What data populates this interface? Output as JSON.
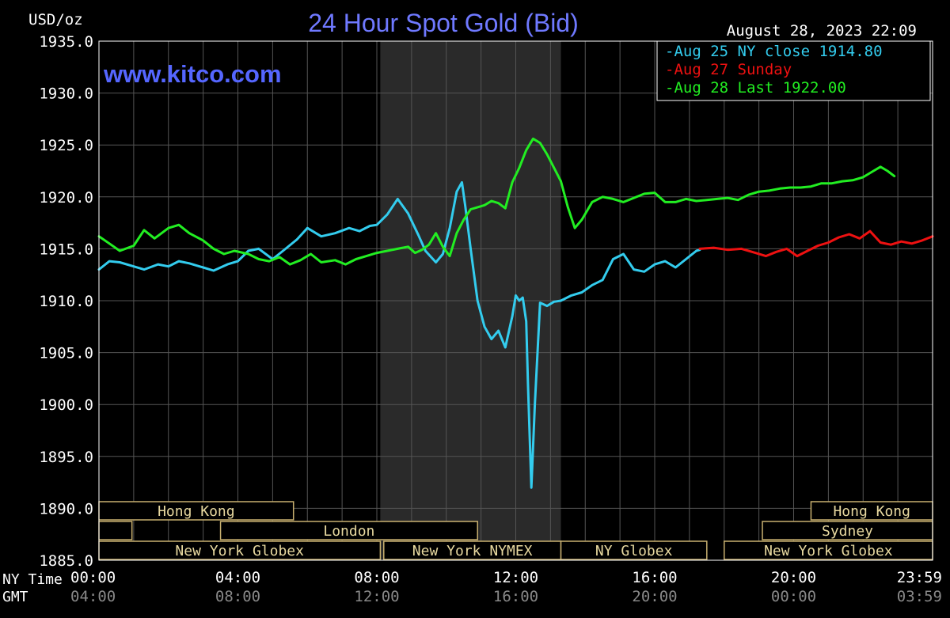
{
  "chart_data": {
    "type": "line",
    "title": "24 Hour Spot Gold (Bid)",
    "ylabel": "USD/oz",
    "watermark": "www.kitco.com",
    "timestamp": "August 28, 2023 22:09",
    "ylim": [
      1885,
      1935
    ],
    "y_ticks": [
      1935,
      1930,
      1925,
      1920,
      1915,
      1910,
      1905,
      1900,
      1895,
      1890,
      1885
    ],
    "y_tick_labels": [
      "1935.0",
      "1930.0",
      "1925.0",
      "1920.0",
      "1915.0",
      "1910.0",
      "1905.0",
      "1900.0",
      "1895.0",
      "1890.0",
      "1885.0"
    ],
    "xlim": [
      0,
      24
    ],
    "x_ticks": [
      0,
      4,
      8,
      12,
      16,
      20,
      24
    ],
    "x_row1_label": "NY Time",
    "x_row1_ticks": [
      "00:00",
      "04:00",
      "08:00",
      "12:00",
      "16:00",
      "20:00",
      "23:59"
    ],
    "x_row2_label": "GMT",
    "x_row2_ticks": [
      "04:00",
      "08:00",
      "12:00",
      "16:00",
      "20:00",
      "00:00",
      "03:59"
    ],
    "shaded_region": [
      8.1,
      13.3
    ],
    "legend": [
      {
        "label": "Aug 25 NY close 1914.80",
        "color": "#33ccee"
      },
      {
        "label": "Aug 27 Sunday",
        "color": "#ee1111"
      },
      {
        "label": "Aug 28 Last 1922.00",
        "color": "#22ee22"
      }
    ],
    "sessions": [
      {
        "label": "Hong Kong",
        "row": 0,
        "start": 0,
        "end": 5.6
      },
      {
        "label": "",
        "row": 1,
        "start": 0,
        "end": 0.95
      },
      {
        "label": "London",
        "row": 1,
        "start": 3.5,
        "end": 10.9
      },
      {
        "label": "New York Globex",
        "row": 2,
        "start": 0,
        "end": 8.1
      },
      {
        "label": "New York NYMEX",
        "row": 2,
        "start": 8.2,
        "end": 13.3
      },
      {
        "label": "NY Globex",
        "row": 2,
        "start": 13.3,
        "end": 17.5
      },
      {
        "label": "Hong Kong",
        "row": 0,
        "start": 20.5,
        "end": 24
      },
      {
        "label": "Sydney",
        "row": 1,
        "start": 19.1,
        "end": 24
      },
      {
        "label": "New York Globex",
        "row": 2,
        "start": 18.0,
        "end": 24
      }
    ],
    "series": [
      {
        "name": "Aug 25 NY close 1914.80",
        "color": "#33ccee",
        "x": [
          0,
          0.3,
          0.6,
          1,
          1.3,
          1.7,
          2,
          2.3,
          2.6,
          3,
          3.3,
          3.7,
          4,
          4.3,
          4.6,
          5,
          5.3,
          5.7,
          6,
          6.4,
          6.8,
          7.2,
          7.5,
          7.8,
          8.0,
          8.3,
          8.6,
          8.9,
          9.2,
          9.4,
          9.7,
          9.9,
          10.1,
          10.3,
          10.45,
          10.55,
          10.7,
          10.9,
          11.1,
          11.3,
          11.5,
          11.7,
          11.9,
          12.0,
          12.1,
          12.2,
          12.3,
          12.35,
          12.45,
          12.55,
          12.7,
          12.9,
          13.1,
          13.3,
          13.6,
          13.9,
          14.2,
          14.5,
          14.8,
          15.1,
          15.4,
          15.7,
          16.0,
          16.3,
          16.6,
          16.9,
          17.2,
          17.3
        ],
        "y": [
          1913.0,
          1913.8,
          1913.7,
          1913.3,
          1913.0,
          1913.5,
          1913.3,
          1913.8,
          1913.6,
          1913.2,
          1912.9,
          1913.5,
          1913.8,
          1914.8,
          1915.0,
          1914.0,
          1914.8,
          1915.9,
          1917.0,
          1916.2,
          1916.5,
          1917.0,
          1916.7,
          1917.2,
          1917.3,
          1918.3,
          1919.8,
          1918.4,
          1916.3,
          1914.8,
          1913.7,
          1914.5,
          1917.0,
          1920.5,
          1921.4,
          1919.0,
          1915.0,
          1910.0,
          1907.5,
          1906.3,
          1907.1,
          1905.5,
          1908.5,
          1910.5,
          1910.0,
          1910.3,
          1908.0,
          1902.0,
          1892.0,
          1900.0,
          1909.8,
          1909.5,
          1909.9,
          1910.0,
          1910.5,
          1910.8,
          1911.5,
          1912.0,
          1914.0,
          1914.5,
          1913.0,
          1912.8,
          1913.5,
          1913.8,
          1913.2,
          1914.0,
          1914.8,
          1914.9
        ]
      },
      {
        "name": "Aug 27 Sunday",
        "color": "#ee1111",
        "x": [
          17.3,
          17.7,
          18.1,
          18.5,
          18.9,
          19.2,
          19.5,
          19.8,
          20.1,
          20.4,
          20.7,
          21.0,
          21.3,
          21.6,
          21.9,
          22.2,
          22.5,
          22.8,
          23.1,
          23.4,
          23.7,
          24.0
        ],
        "y": [
          1915.0,
          1915.1,
          1914.9,
          1915.0,
          1914.6,
          1914.3,
          1914.7,
          1915.0,
          1914.3,
          1914.8,
          1915.3,
          1915.6,
          1916.1,
          1916.4,
          1916.0,
          1916.7,
          1915.6,
          1915.4,
          1915.7,
          1915.5,
          1915.8,
          1916.2
        ]
      },
      {
        "name": "Aug 28 Last 1922.00",
        "color": "#22ee22",
        "x": [
          0,
          0.3,
          0.6,
          1,
          1.3,
          1.6,
          2,
          2.3,
          2.6,
          3,
          3.3,
          3.6,
          3.9,
          4.3,
          4.6,
          4.9,
          5.2,
          5.5,
          5.8,
          6.1,
          6.4,
          6.8,
          7.1,
          7.4,
          7.7,
          8.0,
          8.3,
          8.6,
          8.9,
          9.1,
          9.3,
          9.5,
          9.7,
          9.9,
          10.1,
          10.3,
          10.5,
          10.7,
          10.9,
          11.1,
          11.3,
          11.5,
          11.7,
          11.9,
          12.1,
          12.3,
          12.5,
          12.7,
          12.9,
          13.1,
          13.3,
          13.5,
          13.7,
          13.9,
          14.2,
          14.5,
          14.8,
          15.1,
          15.4,
          15.7,
          16.0,
          16.3,
          16.6,
          16.9,
          17.2,
          17.5,
          17.8,
          18.1,
          18.4,
          18.7,
          19.0,
          19.3,
          19.6,
          19.9,
          20.2,
          20.5,
          20.8,
          21.1,
          21.4,
          21.7,
          22.0,
          22.3,
          22.5,
          22.7,
          22.9
        ],
        "y": [
          1916.2,
          1915.5,
          1914.8,
          1915.3,
          1916.8,
          1916.0,
          1917.0,
          1917.3,
          1916.5,
          1915.8,
          1915.0,
          1914.5,
          1914.8,
          1914.5,
          1914.0,
          1913.8,
          1914.2,
          1913.5,
          1913.9,
          1914.5,
          1913.7,
          1913.9,
          1913.5,
          1914.0,
          1914.3,
          1914.6,
          1914.8,
          1915.0,
          1915.2,
          1914.6,
          1914.9,
          1915.4,
          1916.5,
          1915.2,
          1914.3,
          1916.5,
          1917.8,
          1918.8,
          1919.0,
          1919.2,
          1919.6,
          1919.4,
          1918.9,
          1921.4,
          1922.8,
          1924.5,
          1925.6,
          1925.2,
          1924.1,
          1922.8,
          1921.5,
          1919.0,
          1917.0,
          1917.8,
          1919.5,
          1920.0,
          1919.8,
          1919.5,
          1919.9,
          1920.3,
          1920.4,
          1919.5,
          1919.5,
          1919.8,
          1919.6,
          1919.7,
          1919.8,
          1919.9,
          1919.7,
          1920.2,
          1920.5,
          1920.6,
          1920.8,
          1920.9,
          1920.9,
          1921.0,
          1921.3,
          1921.3,
          1921.5,
          1921.6,
          1921.9,
          1922.5,
          1922.9,
          1922.5,
          1922.0
        ]
      }
    ]
  }
}
